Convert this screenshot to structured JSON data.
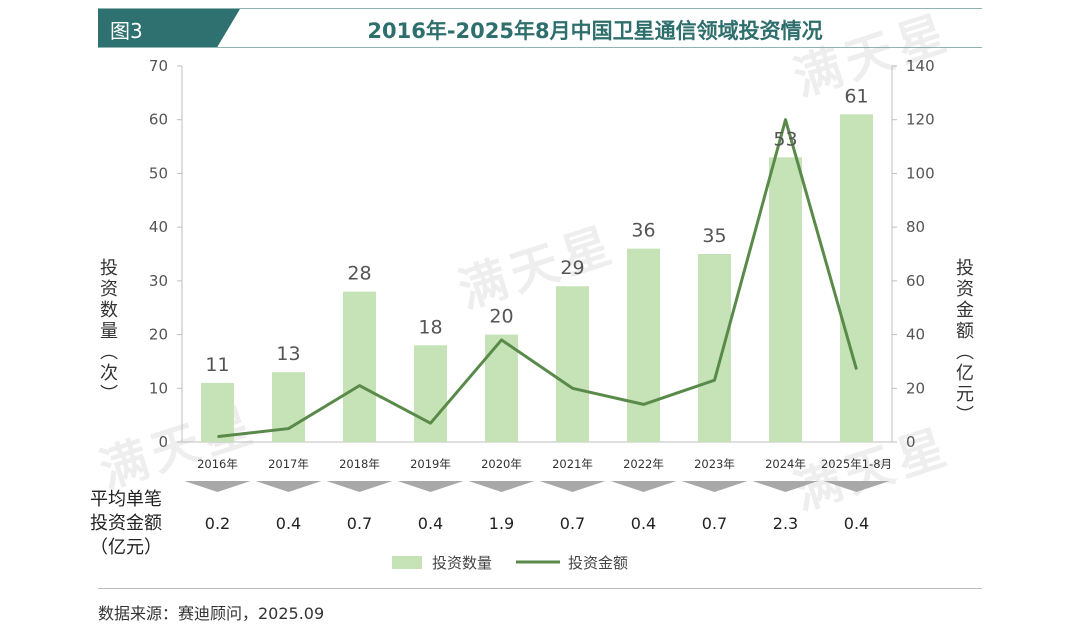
{
  "header": {
    "fig_label": "图3",
    "title": "2016年-2025年8月中国卫星通信领域投资情况"
  },
  "watermark_text": "满天星",
  "chart_data": {
    "type": "bar",
    "categories": [
      "2016年",
      "2017年",
      "2018年",
      "2019年",
      "2020年",
      "2021年",
      "2022年",
      "2023年",
      "2024年",
      "2025年1-8月"
    ],
    "series": [
      {
        "name": "投资数量",
        "type": "bar",
        "axis": "left",
        "values": [
          11,
          13,
          28,
          18,
          20,
          29,
          36,
          35,
          53,
          61
        ],
        "color": "#c5e3b6"
      },
      {
        "name": "投资金额",
        "type": "line",
        "axis": "right",
        "values": [
          2,
          5,
          21,
          7,
          38,
          20,
          14,
          23,
          120,
          27
        ],
        "color": "#5a8a4a"
      }
    ],
    "ylabel_left": "投资数量（次）",
    "ylabel_right": "投资金额（亿元）",
    "ylim_left": [
      0,
      70
    ],
    "yticks_left": [
      0,
      10,
      20,
      30,
      40,
      50,
      60,
      70
    ],
    "ylim_right": [
      0,
      140
    ],
    "yticks_right": [
      0,
      20,
      40,
      60,
      80,
      100,
      120,
      140
    ],
    "grid": false,
    "legend_position": "bottom"
  },
  "average_row": {
    "title_lines": [
      "平均单笔",
      "投资金额",
      "（亿元）"
    ],
    "values": [
      "0.2",
      "0.4",
      "0.7",
      "0.4",
      "1.9",
      "0.7",
      "0.4",
      "0.7",
      "2.3",
      "0.4"
    ]
  },
  "source": "数据来源：赛迪顾问，2025.09"
}
